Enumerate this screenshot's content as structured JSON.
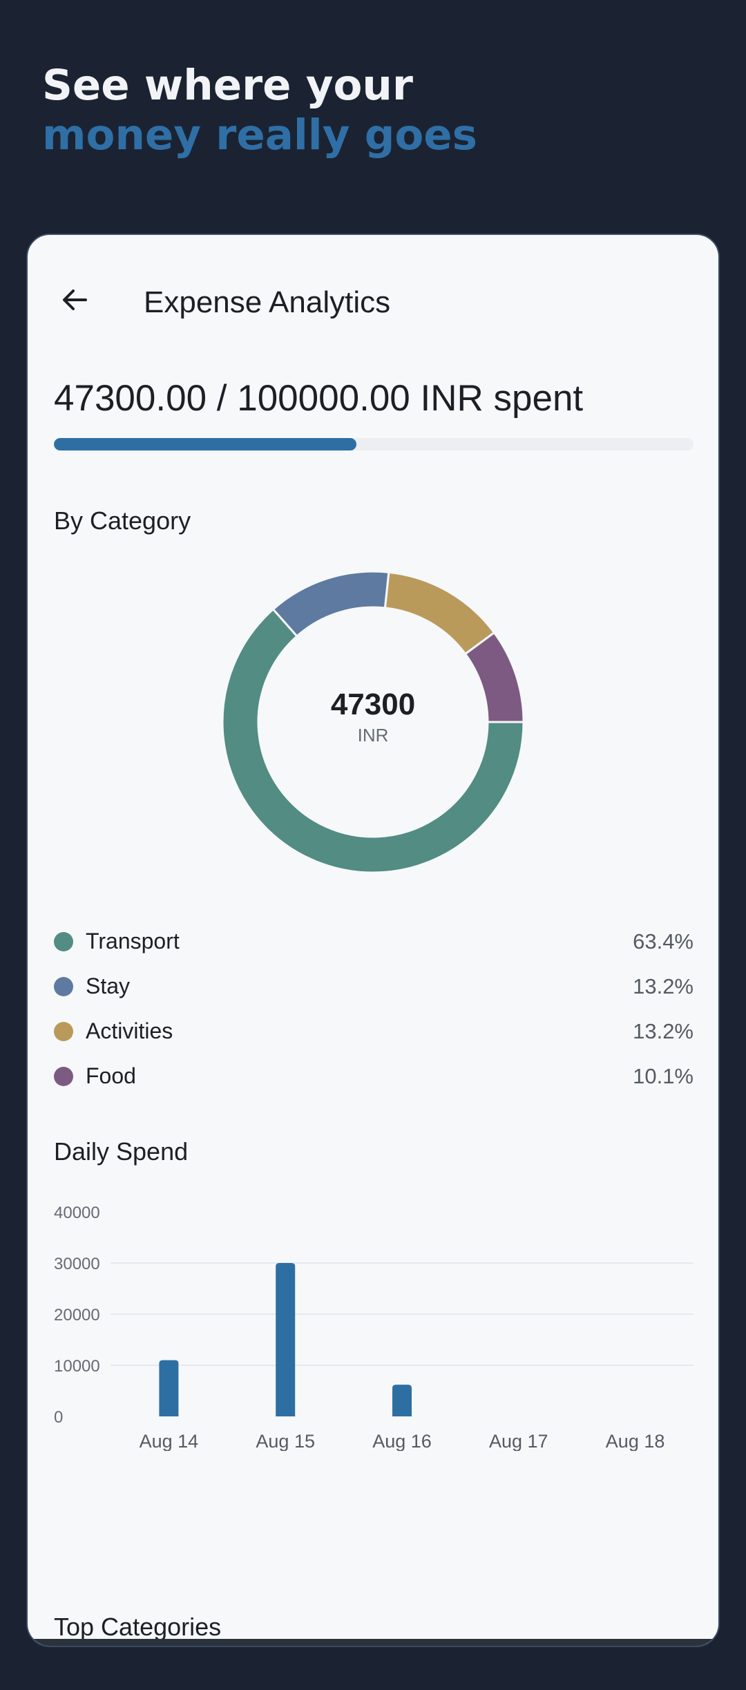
{
  "promo": {
    "line1": "See where your",
    "line2": "money really goes"
  },
  "header": {
    "title": "Expense Analytics",
    "back_icon": "arrow-left-icon"
  },
  "budget": {
    "summary": "47300.00 / 100000.00 INR spent",
    "spent": 47300,
    "total": 100000,
    "progress_fraction": 0.473
  },
  "sections": {
    "by_category": "By Category",
    "daily_spend": "Daily Spend",
    "top_categories": "Top Categories"
  },
  "donut": {
    "total": "47300",
    "unit": "INR"
  },
  "categories": [
    {
      "name": "Transport",
      "pct": "63.4%",
      "value": 63.4,
      "color": "#528c82"
    },
    {
      "name": "Stay",
      "pct": "13.2%",
      "value": 13.2,
      "color": "#5f7aa0"
    },
    {
      "name": "Activities",
      "pct": "13.2%",
      "value": 13.2,
      "color": "#b99a5b"
    },
    {
      "name": "Food",
      "pct": "10.1%",
      "value": 10.1,
      "color": "#7d5a82"
    }
  ],
  "chart_data": {
    "type": "bar",
    "categories": [
      "Aug 14",
      "Aug 15",
      "Aug 16",
      "Aug 17",
      "Aug 18"
    ],
    "values": [
      11000,
      30000,
      6200,
      0,
      0
    ],
    "yticks": [
      "0",
      "10000",
      "20000",
      "30000",
      "40000"
    ],
    "ylim": [
      0,
      40000
    ],
    "grid": true,
    "bar_color": "#2e6fa3"
  }
}
